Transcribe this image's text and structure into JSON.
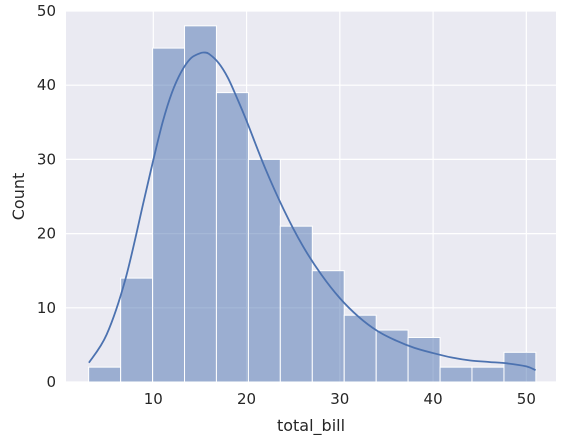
{
  "chart_data": {
    "type": "bar",
    "subtype": "histogram-with-kde",
    "title": "",
    "xlabel": "total_bill",
    "ylabel": "Count",
    "xlim": [
      0.64,
      53.18
    ],
    "ylim": [
      0,
      50
    ],
    "xticks": [
      10,
      20,
      30,
      40,
      50
    ],
    "yticks": [
      0,
      10,
      20,
      30,
      40,
      50
    ],
    "grid": true,
    "bins": [
      {
        "x0": 3.07,
        "x1": 6.5,
        "count": 2
      },
      {
        "x0": 6.5,
        "x1": 9.92,
        "count": 14
      },
      {
        "x0": 9.92,
        "x1": 13.35,
        "count": 45
      },
      {
        "x0": 13.35,
        "x1": 16.77,
        "count": 48
      },
      {
        "x0": 16.77,
        "x1": 20.2,
        "count": 39
      },
      {
        "x0": 20.2,
        "x1": 23.62,
        "count": 30
      },
      {
        "x0": 23.62,
        "x1": 27.05,
        "count": 21
      },
      {
        "x0": 27.05,
        "x1": 30.47,
        "count": 15
      },
      {
        "x0": 30.47,
        "x1": 33.9,
        "count": 9
      },
      {
        "x0": 33.9,
        "x1": 37.32,
        "count": 7
      },
      {
        "x0": 37.32,
        "x1": 40.75,
        "count": 6
      },
      {
        "x0": 40.75,
        "x1": 44.17,
        "count": 2
      },
      {
        "x0": 44.17,
        "x1": 47.6,
        "count": 2
      },
      {
        "x0": 47.6,
        "x1": 51.02,
        "count": 4
      }
    ],
    "kde": {
      "x": [
        3.1,
        5,
        7,
        9,
        10,
        11,
        12,
        13,
        14,
        15,
        15.5,
        16,
        17,
        18,
        19,
        20,
        22,
        24,
        26,
        28,
        30,
        32,
        34,
        36,
        38,
        40,
        42,
        44,
        46,
        48,
        50,
        51
      ],
      "y": [
        2.6,
        6.4,
        13.8,
        24.5,
        29.9,
        35.0,
        39.0,
        41.8,
        43.6,
        44.3,
        44.4,
        44.2,
        43.0,
        41.0,
        38.2,
        35.2,
        28.8,
        23.2,
        18.4,
        14.5,
        11.3,
        8.8,
        6.9,
        5.6,
        4.6,
        3.9,
        3.3,
        2.9,
        2.7,
        2.5,
        2.1,
        1.6
      ]
    },
    "colors": {
      "background": "#eaeaf2",
      "grid": "#ffffff",
      "bar_fill": "#4c72b0",
      "bar_opacity": 0.5,
      "bar_edge": "#ffffff",
      "kde_line": "#4c72b0"
    }
  }
}
